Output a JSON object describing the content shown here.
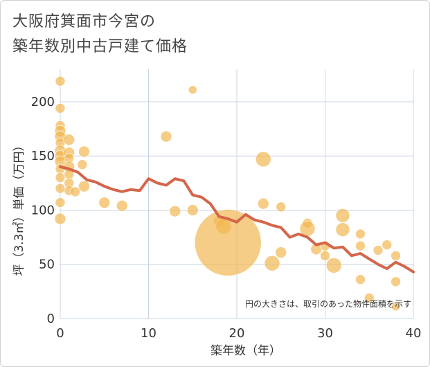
{
  "title_lines": [
    "大阪府箕面市今宮の",
    "築年数別中古戸建て価格"
  ],
  "chart_data": {
    "type": "scatter",
    "title": "大阪府箕面市今宮の築年数別中古戸建て価格",
    "xlabel": "築年数（年）",
    "ylabel": "坪（3.3㎡）単価（万円）",
    "xlim": [
      0,
      40
    ],
    "ylim": [
      0,
      230
    ],
    "xticks": [
      0,
      10,
      20,
      30,
      40
    ],
    "yticks": [
      0,
      50,
      100,
      150,
      200
    ],
    "grid": true,
    "note": "円の大きさは、取引のあった物件面積を示す",
    "colors": {
      "bubble": "#f2b54e",
      "line": "#d4664a",
      "grid": "#c8d4e2"
    },
    "bubbles": [
      {
        "x": 0,
        "y": 219,
        "r": 7
      },
      {
        "x": 0,
        "y": 194,
        "r": 7
      },
      {
        "x": 0,
        "y": 178,
        "r": 7
      },
      {
        "x": 0,
        "y": 173,
        "r": 8
      },
      {
        "x": 0,
        "y": 168,
        "r": 8
      },
      {
        "x": 0,
        "y": 162,
        "r": 7
      },
      {
        "x": 0,
        "y": 155,
        "r": 8
      },
      {
        "x": 0,
        "y": 150,
        "r": 8
      },
      {
        "x": 0,
        "y": 145,
        "r": 8
      },
      {
        "x": 0,
        "y": 138,
        "r": 7
      },
      {
        "x": 0,
        "y": 130,
        "r": 7
      },
      {
        "x": 0,
        "y": 120,
        "r": 7
      },
      {
        "x": 0,
        "y": 107,
        "r": 7
      },
      {
        "x": 0,
        "y": 92,
        "r": 8
      },
      {
        "x": 1,
        "y": 165,
        "r": 8
      },
      {
        "x": 1,
        "y": 153,
        "r": 8
      },
      {
        "x": 1,
        "y": 148,
        "r": 7
      },
      {
        "x": 1,
        "y": 140,
        "r": 8
      },
      {
        "x": 1,
        "y": 133,
        "r": 7
      },
      {
        "x": 1,
        "y": 125,
        "r": 7
      },
      {
        "x": 1,
        "y": 118,
        "r": 7
      },
      {
        "x": 1.7,
        "y": 117,
        "r": 7
      },
      {
        "x": 2.5,
        "y": 142,
        "r": 7
      },
      {
        "x": 2.7,
        "y": 122,
        "r": 8
      },
      {
        "x": 2.7,
        "y": 154,
        "r": 8
      },
      {
        "x": 5,
        "y": 107,
        "r": 8
      },
      {
        "x": 7,
        "y": 104,
        "r": 8
      },
      {
        "x": 12,
        "y": 168,
        "r": 8
      },
      {
        "x": 13,
        "y": 99,
        "r": 8
      },
      {
        "x": 15,
        "y": 100,
        "r": 8
      },
      {
        "x": 15,
        "y": 211,
        "r": 6
      },
      {
        "x": 18,
        "y": 90,
        "r": 8
      },
      {
        "x": 18.5,
        "y": 85,
        "r": 11
      },
      {
        "x": 19,
        "y": 70,
        "r": 48
      },
      {
        "x": 23,
        "y": 147,
        "r": 11
      },
      {
        "x": 23,
        "y": 106,
        "r": 8
      },
      {
        "x": 24,
        "y": 51,
        "r": 11
      },
      {
        "x": 25,
        "y": 103,
        "r": 7
      },
      {
        "x": 25,
        "y": 61,
        "r": 8
      },
      {
        "x": 28,
        "y": 88,
        "r": 7
      },
      {
        "x": 28,
        "y": 83,
        "r": 11
      },
      {
        "x": 29,
        "y": 64,
        "r": 8
      },
      {
        "x": 30,
        "y": 67,
        "r": 7
      },
      {
        "x": 30,
        "y": 58,
        "r": 7
      },
      {
        "x": 31,
        "y": 49,
        "r": 11
      },
      {
        "x": 32,
        "y": 95,
        "r": 10
      },
      {
        "x": 32,
        "y": 82,
        "r": 10
      },
      {
        "x": 34,
        "y": 78,
        "r": 7
      },
      {
        "x": 34,
        "y": 67,
        "r": 7
      },
      {
        "x": 34,
        "y": 36,
        "r": 7
      },
      {
        "x": 35,
        "y": 19,
        "r": 7
      },
      {
        "x": 36,
        "y": 63,
        "r": 7
      },
      {
        "x": 37,
        "y": 68,
        "r": 7
      },
      {
        "x": 38,
        "y": 58,
        "r": 7
      },
      {
        "x": 38,
        "y": 34,
        "r": 7
      },
      {
        "x": 38,
        "y": 11,
        "r": 6
      }
    ],
    "trend": {
      "x": [
        0,
        1,
        2,
        3,
        4,
        5,
        6,
        7,
        8,
        9,
        10,
        11,
        12,
        13,
        14,
        15,
        16,
        17,
        18,
        19,
        20,
        21,
        22,
        23,
        24,
        25,
        26,
        27,
        28,
        29,
        30,
        31,
        32,
        33,
        34,
        35,
        36,
        37,
        38,
        39,
        40
      ],
      "y": [
        140,
        138,
        135,
        128,
        126,
        122,
        119,
        117,
        119,
        118,
        129,
        125,
        123,
        129,
        127,
        114,
        112,
        106,
        94,
        92,
        89,
        96,
        91,
        89,
        86,
        84,
        75,
        78,
        75,
        68,
        70,
        65,
        66,
        58,
        60,
        55,
        50,
        46,
        52,
        48,
        43
      ]
    }
  }
}
